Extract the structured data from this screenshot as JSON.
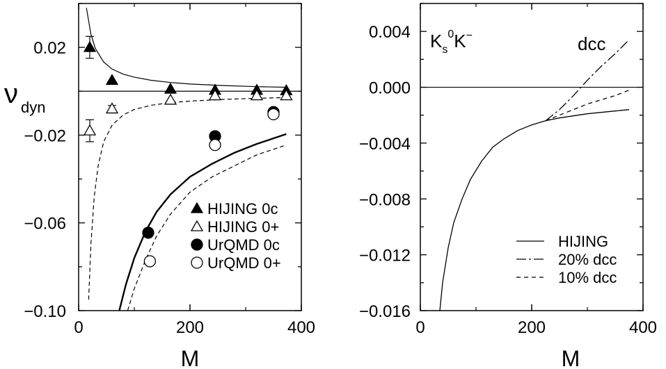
{
  "chart_data": [
    {
      "type": "scatter",
      "xlabel": "M",
      "ylabel_main": "ν",
      "ylabel_sub": "dyn",
      "xlim": [
        0,
        400
      ],
      "ylim": [
        -0.1,
        0.04
      ],
      "x_ticks": [
        0,
        200,
        400
      ],
      "x_tick_labels": [
        "0",
        "200",
        "400"
      ],
      "y_ticks": [
        0.02,
        -0.02,
        -0.06,
        -0.1
      ],
      "y_tick_labels": [
        "0.02",
        "−0.02",
        "−0.06",
        "−0.10"
      ],
      "legend_position": "bottom-right",
      "legend": [
        {
          "label": "HIJING 0c",
          "marker": "filled-triangle"
        },
        {
          "label": "HIJING 0+",
          "marker": "open-triangle"
        },
        {
          "label": "UrQMD 0c",
          "marker": "filled-circle"
        },
        {
          "label": "UrQMD 0+",
          "marker": "open-circle"
        }
      ],
      "series": [
        {
          "name": "HIJING 0c",
          "marker": "filled-triangle",
          "points": [
            [
              20,
              0.02,
              0.005
            ],
            [
              60,
              0.005,
              0
            ],
            [
              165,
              0.001,
              0
            ],
            [
              245,
              0.0005,
              0
            ],
            [
              320,
              0.0005,
              0
            ],
            [
              373,
              0.0003,
              0
            ]
          ]
        },
        {
          "name": "HIJING 0+",
          "marker": "open-triangle",
          "points": [
            [
              20,
              -0.018,
              0.005
            ],
            [
              60,
              -0.008,
              0.0015
            ],
            [
              165,
              -0.004,
              0
            ],
            [
              245,
              -0.002,
              0
            ],
            [
              320,
              -0.002,
              0
            ],
            [
              373,
              -0.002,
              0
            ]
          ]
        },
        {
          "name": "UrQMD 0c",
          "marker": "filled-circle",
          "points": [
            [
              125,
              -0.0645,
              0
            ],
            [
              245,
              -0.0205,
              0
            ],
            [
              350,
              -0.0095,
              0
            ]
          ]
        },
        {
          "name": "UrQMD 0+",
          "marker": "open-circle",
          "points": [
            [
              128,
              -0.0775,
              0
            ],
            [
              245,
              -0.0245,
              0
            ],
            [
              350,
              -0.0105,
              0
            ]
          ]
        }
      ],
      "curves": [
        {
          "style": "thin-solid",
          "points": [
            [
              14,
              0.038
            ],
            [
              22,
              0.026
            ],
            [
              30,
              0.0195
            ],
            [
              45,
              0.0133
            ],
            [
              60,
              0.0101
            ],
            [
              80,
              0.0078
            ],
            [
              100,
              0.0064
            ],
            [
              130,
              0.005
            ],
            [
              165,
              0.004
            ],
            [
              200,
              0.0033
            ],
            [
              260,
              0.0026
            ],
            [
              320,
              0.0021
            ],
            [
              375,
              0.0018
            ]
          ]
        },
        {
          "style": "thin-dashed",
          "points": [
            [
              18,
              -0.095
            ],
            [
              22,
              -0.07
            ],
            [
              28,
              -0.048
            ],
            [
              35,
              -0.034
            ],
            [
              45,
              -0.023
            ],
            [
              60,
              -0.0155
            ],
            [
              80,
              -0.0108
            ],
            [
              100,
              -0.0083
            ],
            [
              130,
              -0.0064
            ],
            [
              165,
              -0.0052
            ],
            [
              200,
              -0.0045
            ],
            [
              260,
              -0.0037
            ],
            [
              320,
              -0.0032
            ],
            [
              375,
              -0.0029
            ]
          ]
        },
        {
          "style": "thick-solid",
          "points": [
            [
              73,
              -0.1
            ],
            [
              85,
              -0.088
            ],
            [
              100,
              -0.076
            ],
            [
              120,
              -0.064
            ],
            [
              140,
              -0.055
            ],
            [
              165,
              -0.047
            ],
            [
              200,
              -0.039
            ],
            [
              240,
              -0.033
            ],
            [
              280,
              -0.028
            ],
            [
              320,
              -0.024
            ],
            [
              373,
              -0.0195
            ]
          ]
        },
        {
          "style": "thin-dashed",
          "points": [
            [
              88,
              -0.1
            ],
            [
              100,
              -0.09
            ],
            [
              120,
              -0.077
            ],
            [
              140,
              -0.066
            ],
            [
              165,
              -0.056
            ],
            [
              200,
              -0.046
            ],
            [
              240,
              -0.039
            ],
            [
              280,
              -0.034
            ],
            [
              320,
              -0.029
            ],
            [
              373,
              -0.0245
            ]
          ]
        }
      ],
      "reference_line_y": 0.0
    },
    {
      "type": "line",
      "annotation_main": "K",
      "annotation_sub": "s",
      "annotation_sup_zero": "0",
      "annotation_k": "K",
      "annotation_sup_minus": "−",
      "annotation_dcc": "dcc",
      "xlabel": "M",
      "xlim": [
        0,
        400
      ],
      "ylim": [
        -0.016,
        0.006
      ],
      "x_ticks": [
        0,
        200,
        400
      ],
      "x_tick_labels": [
        "0",
        "200",
        "400"
      ],
      "y_ticks": [
        0.004,
        0.0,
        -0.004,
        -0.008,
        -0.012,
        -0.016
      ],
      "y_tick_labels": [
        "0.004",
        "0.000",
        "−0.004",
        "−0.008",
        "−0.012",
        "−0.016"
      ],
      "legend_position": "bottom-right",
      "legend": [
        {
          "label": "HIJING",
          "style": "solid"
        },
        {
          "label": "20% dcc",
          "style": "long-dash"
        },
        {
          "label": "10% dcc",
          "style": "dash"
        }
      ],
      "series": [
        {
          "name": "HIJING",
          "style": "solid",
          "points": [
            [
              35,
              -0.016
            ],
            [
              40,
              -0.014
            ],
            [
              50,
              -0.0115
            ],
            [
              60,
              -0.0097
            ],
            [
              75,
              -0.008
            ],
            [
              90,
              -0.0066
            ],
            [
              110,
              -0.0053
            ],
            [
              130,
              -0.0043
            ],
            [
              150,
              -0.0037
            ],
            [
              175,
              -0.0031
            ],
            [
              200,
              -0.0027
            ],
            [
              225,
              -0.0024
            ],
            [
              250,
              -0.0022
            ],
            [
              300,
              -0.0019
            ],
            [
              350,
              -0.0017
            ],
            [
              375,
              -0.0016
            ]
          ]
        },
        {
          "name": "20% dcc",
          "style": "long-dash",
          "points": [
            [
              225,
              -0.0024
            ],
            [
              250,
              -0.0016
            ],
            [
              275,
              -0.0006
            ],
            [
              300,
              0.0005
            ],
            [
              325,
              0.0015
            ],
            [
              350,
              0.0024
            ],
            [
              375,
              0.0034
            ]
          ]
        },
        {
          "name": "10% dcc",
          "style": "dash",
          "points": [
            [
              225,
              -0.0024
            ],
            [
              250,
              -0.002
            ],
            [
              275,
              -0.0016
            ],
            [
              300,
              -0.0012
            ],
            [
              325,
              -0.0009
            ],
            [
              350,
              -0.0006
            ],
            [
              375,
              -0.0002
            ]
          ]
        }
      ],
      "reference_line_y": 0.0
    }
  ]
}
